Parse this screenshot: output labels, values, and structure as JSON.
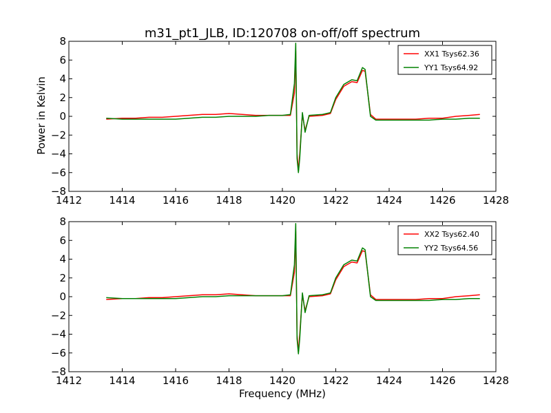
{
  "chart_data": {
    "type": "line",
    "title": "m31_pt1_JLB, ID:120708 on-off/off spectrum",
    "xlabel": "Frequency (MHz)",
    "ylabel": "Power in Kelvin",
    "xlim": [
      1412,
      1428
    ],
    "ylim": [
      -8,
      8
    ],
    "xticks": [
      1412,
      1414,
      1416,
      1418,
      1420,
      1422,
      1424,
      1426,
      1428
    ],
    "yticks": [
      -8,
      -6,
      -4,
      -2,
      0,
      2,
      4,
      6,
      8
    ],
    "xtick_labels": [
      "1412",
      "1414",
      "1416",
      "1418",
      "1420",
      "1422",
      "1424",
      "1426",
      "1428"
    ],
    "ytick_labels": [
      "−8",
      "−6",
      "−4",
      "−2",
      "0",
      "2",
      "4",
      "6",
      "8"
    ],
    "legend_position": "top-right",
    "panels": [
      {
        "series": [
          {
            "name": "XX1 Tsys62.36",
            "color": "#ff0000",
            "x": [
              1413.4,
              1414.0,
              1414.5,
              1415.0,
              1415.5,
              1416.0,
              1416.5,
              1417.0,
              1417.5,
              1418.0,
              1418.5,
              1419.0,
              1419.5,
              1420.0,
              1420.3,
              1420.45,
              1420.5,
              1420.55,
              1420.6,
              1420.65,
              1420.75,
              1420.85,
              1421.0,
              1421.5,
              1421.8,
              1422.0,
              1422.3,
              1422.6,
              1422.8,
              1423.0,
              1423.1,
              1423.3,
              1423.5,
              1424.0,
              1424.5,
              1425.0,
              1425.5,
              1426.0,
              1426.5,
              1427.0,
              1427.4
            ],
            "y": [
              -0.3,
              -0.2,
              -0.2,
              -0.1,
              -0.1,
              0.0,
              0.1,
              0.2,
              0.2,
              0.3,
              0.2,
              0.1,
              0.1,
              0.1,
              0.1,
              2.5,
              7.0,
              -4.0,
              -5.8,
              -4.0,
              0.2,
              -1.5,
              0.0,
              0.1,
              0.3,
              1.8,
              3.2,
              3.7,
              3.6,
              4.9,
              4.8,
              0.2,
              -0.3,
              -0.3,
              -0.3,
              -0.3,
              -0.2,
              -0.2,
              0.0,
              0.1,
              0.2
            ]
          },
          {
            "name": "YY1 Tsys64.92",
            "color": "#008000",
            "x": [
              1413.4,
              1414.0,
              1414.5,
              1415.0,
              1415.5,
              1416.0,
              1416.5,
              1417.0,
              1417.5,
              1418.0,
              1418.5,
              1419.0,
              1419.5,
              1420.0,
              1420.3,
              1420.45,
              1420.5,
              1420.55,
              1420.6,
              1420.65,
              1420.75,
              1420.85,
              1421.0,
              1421.5,
              1421.8,
              1422.0,
              1422.3,
              1422.6,
              1422.8,
              1423.0,
              1423.1,
              1423.3,
              1423.5,
              1424.0,
              1424.5,
              1425.0,
              1425.5,
              1426.0,
              1426.5,
              1427.0,
              1427.4
            ],
            "y": [
              -0.2,
              -0.3,
              -0.3,
              -0.3,
              -0.3,
              -0.3,
              -0.2,
              -0.1,
              -0.1,
              0.0,
              0.0,
              0.0,
              0.1,
              0.1,
              0.2,
              3.5,
              7.8,
              -4.5,
              -6.0,
              -4.5,
              0.4,
              -1.7,
              0.1,
              0.2,
              0.4,
              2.0,
              3.4,
              3.9,
              3.8,
              5.2,
              5.0,
              0.0,
              -0.4,
              -0.4,
              -0.4,
              -0.4,
              -0.4,
              -0.3,
              -0.3,
              -0.2,
              -0.2
            ]
          }
        ]
      },
      {
        "series": [
          {
            "name": "XX2 Tsys62.40",
            "color": "#ff0000",
            "x": [
              1413.4,
              1414.0,
              1414.5,
              1415.0,
              1415.5,
              1416.0,
              1416.5,
              1417.0,
              1417.5,
              1418.0,
              1418.5,
              1419.0,
              1419.5,
              1420.0,
              1420.3,
              1420.45,
              1420.5,
              1420.55,
              1420.6,
              1420.65,
              1420.75,
              1420.85,
              1421.0,
              1421.5,
              1421.8,
              1422.0,
              1422.3,
              1422.6,
              1422.8,
              1423.0,
              1423.1,
              1423.3,
              1423.5,
              1424.0,
              1424.5,
              1425.0,
              1425.5,
              1426.0,
              1426.5,
              1427.0,
              1427.4
            ],
            "y": [
              -0.3,
              -0.2,
              -0.2,
              -0.1,
              -0.1,
              0.0,
              0.1,
              0.2,
              0.2,
              0.3,
              0.2,
              0.1,
              0.1,
              0.1,
              0.1,
              2.6,
              7.0,
              -4.1,
              -5.9,
              -4.0,
              0.2,
              -1.5,
              0.0,
              0.1,
              0.3,
              1.8,
              3.2,
              3.7,
              3.6,
              4.9,
              4.8,
              0.2,
              -0.3,
              -0.3,
              -0.3,
              -0.3,
              -0.2,
              -0.2,
              0.0,
              0.1,
              0.2
            ]
          },
          {
            "name": "YY2 Tsys64.56",
            "color": "#008000",
            "x": [
              1413.4,
              1414.0,
              1414.5,
              1415.0,
              1415.5,
              1416.0,
              1416.5,
              1417.0,
              1417.5,
              1418.0,
              1418.5,
              1419.0,
              1419.5,
              1420.0,
              1420.3,
              1420.45,
              1420.5,
              1420.55,
              1420.6,
              1420.65,
              1420.75,
              1420.85,
              1421.0,
              1421.5,
              1421.8,
              1422.0,
              1422.3,
              1422.6,
              1422.8,
              1423.0,
              1423.1,
              1423.3,
              1423.5,
              1424.0,
              1424.5,
              1425.0,
              1425.5,
              1426.0,
              1426.5,
              1427.0,
              1427.4
            ],
            "y": [
              -0.1,
              -0.2,
              -0.2,
              -0.2,
              -0.2,
              -0.2,
              -0.1,
              0.0,
              0.0,
              0.1,
              0.1,
              0.1,
              0.1,
              0.1,
              0.2,
              3.4,
              7.8,
              -4.5,
              -6.1,
              -4.5,
              0.4,
              -1.7,
              0.1,
              0.2,
              0.4,
              2.0,
              3.4,
              3.9,
              3.8,
              5.2,
              5.0,
              0.0,
              -0.4,
              -0.4,
              -0.4,
              -0.4,
              -0.4,
              -0.3,
              -0.3,
              -0.2,
              -0.2
            ]
          }
        ]
      }
    ]
  }
}
